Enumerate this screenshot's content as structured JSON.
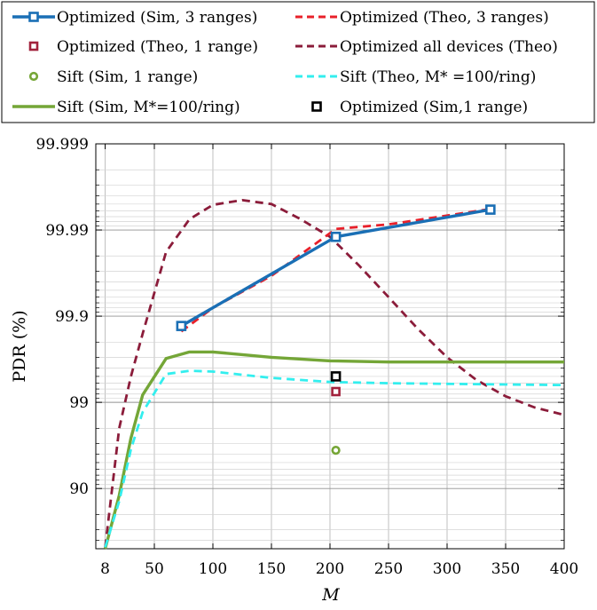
{
  "chart_data": {
    "type": "line",
    "xlabel": "M",
    "ylabel": "PDR (%)",
    "x_ticks": [
      8,
      50,
      100,
      150,
      200,
      250,
      300,
      350,
      400
    ],
    "x_tick_labels": [
      "8",
      "50",
      "100",
      "150",
      "200",
      "250",
      "300",
      "350",
      "400"
    ],
    "xlim": [
      0,
      400
    ],
    "y_scale": "log of (100 - PDR)",
    "y_ticks": [
      90,
      99,
      99.9,
      99.99,
      99.999
    ],
    "y_tick_labels": [
      "90",
      "99",
      "99.9",
      "99.99",
      "99.999"
    ],
    "ylim": [
      50,
      99.999
    ],
    "grid": true,
    "legend_position": "top, outside plot, two columns",
    "series": [
      {
        "name": "Optimized (Sim, 3 ranges)",
        "color": "#1a6fb5",
        "style": "solid-square-markers",
        "x": [
          73,
          205,
          337
        ],
        "y": [
          99.87,
          99.988,
          99.9942
        ]
      },
      {
        "name": "Optimized (Theo, 3 ranges)",
        "color": "#e8202a",
        "style": "dashed",
        "x": [
          73,
          100,
          150,
          205,
          250,
          300,
          337
        ],
        "y": [
          99.85,
          99.92,
          99.966,
          99.9903,
          99.9914,
          99.9932,
          99.9943
        ]
      },
      {
        "name": "Optimized (Theo, 1 range)",
        "color": "#a2223c",
        "style": "marker-square",
        "x": [
          205
        ],
        "y": [
          99.25
        ]
      },
      {
        "name": "Optimized all devices (Theo)",
        "color": "#8b1c3a",
        "style": "dashed",
        "x": [
          8,
          20,
          30,
          40,
          60,
          80,
          100,
          125,
          150,
          175,
          200,
          225,
          250,
          275,
          300,
          325,
          350,
          375,
          400
        ],
        "y": [
          52,
          98.0,
          99.5,
          99.84,
          99.982,
          99.9925,
          99.9949,
          99.9955,
          99.995,
          99.9925,
          99.988,
          99.974,
          99.94,
          99.86,
          99.7,
          99.45,
          99.15,
          98.85,
          98.6
        ]
      },
      {
        "name": "Sift (Sim, 1 range)",
        "color": "#76a637",
        "style": "marker-circle",
        "x": [
          205
        ],
        "y": [
          96.4
        ]
      },
      {
        "name": "Sift (Theo, M* =100/ring)",
        "color": "#33eeee",
        "style": "dashed",
        "x": [
          8,
          20,
          30,
          40,
          60,
          80,
          100,
          150,
          200,
          250,
          300,
          350,
          400
        ],
        "y": [
          52,
          86,
          96.5,
          98.7,
          99.53,
          99.57,
          99.56,
          99.48,
          99.42,
          99.4,
          99.39,
          99.38,
          99.37
        ]
      },
      {
        "name": "Sift (Sim, M*=100/ring)",
        "color": "#74a637",
        "style": "solid",
        "x": [
          8,
          20,
          30,
          40,
          60,
          80,
          100,
          150,
          200,
          250,
          300,
          350,
          400
        ],
        "y": [
          50,
          88,
          97.4,
          99.18,
          99.69,
          99.74,
          99.74,
          99.7,
          99.67,
          99.66,
          99.66,
          99.66,
          99.66
        ]
      },
      {
        "name": "Optimized (Sim,1 range)",
        "color": "#000000",
        "style": "marker-square-hollow",
        "x": [
          205
        ],
        "y": [
          99.5
        ]
      }
    ]
  }
}
